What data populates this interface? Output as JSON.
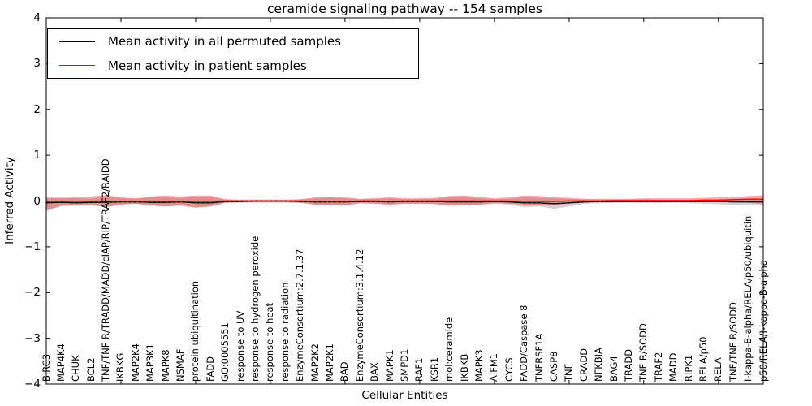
{
  "chart_data": {
    "type": "line",
    "title": "ceramide signaling pathway -- 154 samples",
    "xlabel": "Cellular Entities",
    "ylabel": "Inferred Activity",
    "ylim": [
      -4,
      4
    ],
    "yticks": [
      4,
      3,
      2,
      1,
      0,
      -1,
      -2,
      -3,
      -4
    ],
    "grid": false,
    "legend_position": "upper left",
    "categories": [
      "BIRC3",
      "MAP4K4",
      "CHUK",
      "BCL2",
      "TNF/TNF R/TRADD/MADD/cIAP/RIP/TRAF2/RAIDD",
      "IKBKG",
      "MAP2K4",
      "MAP3K1",
      "MAPK8",
      "NSMAF",
      "protein ubiquitination",
      "FADD",
      "GO:0005551",
      "response to UV",
      "response to hydrogen peroxide",
      "response to heat",
      "response to radiation",
      "EnzymeConsortium:2.7.1.37",
      "MAP2K2",
      "MAP2K1",
      "BAD",
      "EnzymeConsortium:3.1.4.12",
      "BAX",
      "MAPK1",
      "SMPD1",
      "RAF1",
      "KSR1",
      "mol:ceramide",
      "IKBKB",
      "MAPK3",
      "AIFM1",
      "CYCS",
      "FADD/Caspase 8",
      "TNFRSF1A",
      "CASP8",
      "TNF",
      "CRADD",
      "NFKBIA",
      "BAG4",
      "TRADD",
      "TNF R/SODD",
      "TRAF2",
      "MADD",
      "RIPK1",
      "RELA/p50",
      "RELA",
      "TNF/TNF R/SODD",
      "I-kappa-B-alpha/RELA/p50/ubiquitin",
      "p50/RELA/I-kappa-B-alpha"
    ],
    "series": [
      {
        "name": "Mean activity in all permuted samples",
        "color": "#000000",
        "values": [
          -0.04,
          -0.03,
          -0.04,
          -0.03,
          -0.03,
          -0.02,
          -0.02,
          -0.03,
          -0.03,
          -0.02,
          -0.04,
          -0.04,
          -0.01,
          -0.01,
          0,
          0,
          0,
          -0.01,
          -0.02,
          -0.02,
          -0.02,
          -0.01,
          -0.01,
          -0.02,
          -0.01,
          -0.01,
          -0.01,
          -0.02,
          -0.02,
          -0.02,
          -0.01,
          -0.02,
          -0.04,
          -0.04,
          -0.06,
          -0.04,
          -0.02,
          -0.01,
          -0.01,
          -0.01,
          -0.01,
          -0.01,
          -0.01,
          -0.01,
          -0.01,
          -0.01,
          -0.02,
          -0.02,
          -0.02
        ]
      },
      {
        "name": "Mean activity in patient samples",
        "color": "#ff0000",
        "values": [
          -0.02,
          -0.01,
          -0.01,
          -0.01,
          -0.01,
          -0.01,
          -0.01,
          -0.01,
          -0.01,
          -0.01,
          -0.01,
          -0.01,
          0,
          0,
          0,
          0,
          0,
          0,
          -0.01,
          -0.01,
          -0.01,
          0,
          0,
          -0.01,
          0,
          0,
          0,
          0,
          0,
          0,
          0,
          0,
          -0.01,
          -0.01,
          -0.01,
          0,
          0,
          0,
          0.01,
          0.01,
          0.01,
          0.01,
          0.01,
          0.01,
          0.02,
          0.02,
          0.03,
          0.04,
          0.04
        ]
      }
    ],
    "bands": [
      {
        "name": "permuted-samples-std-band",
        "color": "rgba(128,128,128,0.35)",
        "upper": [
          0.06,
          0.08,
          0.06,
          0.05,
          0.1,
          0.06,
          0.05,
          0.08,
          0.08,
          0.06,
          0.1,
          0.08,
          0.03,
          0.02,
          0.02,
          0.02,
          0.02,
          0.03,
          0.06,
          0.08,
          0.06,
          0.04,
          0.05,
          0.06,
          0.04,
          0.04,
          0.05,
          0.08,
          0.08,
          0.06,
          0.04,
          0.05,
          0.08,
          0.07,
          0.06,
          0.05,
          0.04,
          0.03,
          0.03,
          0.03,
          0.04,
          0.03,
          0.03,
          0.03,
          0.04,
          0.04,
          0.05,
          0.05,
          0.05
        ],
        "lower": [
          -0.2,
          -0.12,
          -0.1,
          -0.08,
          -0.14,
          -0.08,
          -0.06,
          -0.1,
          -0.12,
          -0.1,
          -0.15,
          -0.12,
          -0.04,
          -0.03,
          -0.03,
          -0.03,
          -0.03,
          -0.04,
          -0.08,
          -0.1,
          -0.09,
          -0.05,
          -0.06,
          -0.08,
          -0.06,
          -0.06,
          -0.06,
          -0.1,
          -0.1,
          -0.08,
          -0.06,
          -0.08,
          -0.14,
          -0.12,
          -0.17,
          -0.12,
          -0.06,
          -0.05,
          -0.04,
          -0.04,
          -0.05,
          -0.05,
          -0.04,
          -0.05,
          -0.06,
          -0.07,
          -0.09,
          -0.1,
          -0.1
        ]
      },
      {
        "name": "patient-samples-std-band",
        "color": "rgba(231,56,56,0.42)",
        "upper": [
          0.08,
          0.06,
          0.08,
          0.1,
          0.13,
          0.08,
          0.06,
          0.1,
          0.12,
          0.1,
          0.12,
          0.12,
          0.04,
          0.03,
          0.03,
          0.03,
          0.03,
          0.04,
          0.08,
          0.1,
          0.08,
          0.05,
          0.06,
          0.08,
          0.06,
          0.06,
          0.07,
          0.11,
          0.12,
          0.09,
          0.06,
          0.08,
          0.12,
          0.11,
          0.08,
          0.07,
          0.05,
          0.05,
          0.05,
          0.05,
          0.06,
          0.06,
          0.06,
          0.06,
          0.07,
          0.08,
          0.09,
          0.11,
          0.12
        ],
        "lower": [
          -0.22,
          -0.1,
          -0.08,
          -0.1,
          -0.13,
          -0.08,
          -0.06,
          -0.1,
          -0.12,
          -0.1,
          -0.14,
          -0.12,
          -0.04,
          -0.03,
          -0.03,
          -0.03,
          -0.03,
          -0.04,
          -0.08,
          -0.1,
          -0.1,
          -0.05,
          -0.06,
          -0.08,
          -0.06,
          -0.06,
          -0.07,
          -0.1,
          -0.1,
          -0.08,
          -0.05,
          -0.06,
          -0.08,
          -0.08,
          -0.08,
          -0.06,
          -0.04,
          -0.03,
          -0.03,
          -0.02,
          -0.02,
          -0.02,
          -0.02,
          -0.02,
          -0.02,
          -0.02,
          -0.02,
          -0.04,
          -0.06
        ]
      }
    ]
  }
}
